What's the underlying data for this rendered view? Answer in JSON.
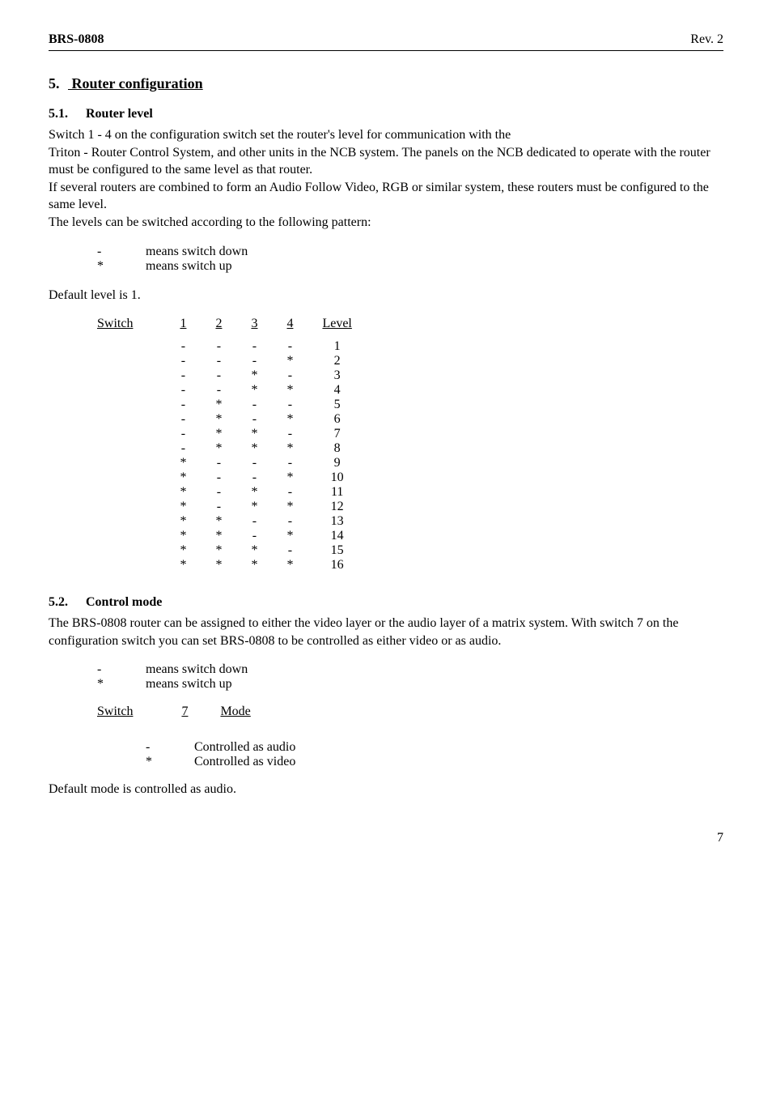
{
  "header": {
    "left": "BRS-0808",
    "right": "Rev. 2"
  },
  "section": {
    "num": "5.",
    "title": "Router configuration"
  },
  "sub1": {
    "num": "5.1.",
    "title": "Router level",
    "p1": "Switch 1 - 4 on the configuration switch set the router's level for communication with the",
    "p2": "Triton - Router Control System, and other units in the NCB system. The panels on the NCB dedicated to operate with the router must be configured to the same level as that router.",
    "p3": "If several routers are combined to form an Audio Follow Video, RGB or similar system, these routers must be configured to the same level.",
    "p4": "The levels can be switched according to the following pattern:",
    "legend": {
      "down_sym": "-",
      "down_txt": "means switch down",
      "up_sym": "*",
      "up_txt": "means switch up"
    },
    "p5": "Default level is 1."
  },
  "level_table": {
    "headers": [
      "Switch",
      "1",
      "2",
      "3",
      "4",
      "Level"
    ],
    "rows": [
      [
        "-",
        "-",
        "-",
        "-",
        "1"
      ],
      [
        "-",
        "-",
        "-",
        "*",
        "2"
      ],
      [
        "-",
        "-",
        "*",
        "-",
        "3"
      ],
      [
        "-",
        "-",
        "*",
        "*",
        "4"
      ],
      [
        "-",
        "*",
        "-",
        "-",
        "5"
      ],
      [
        "-",
        "*",
        "-",
        "*",
        "6"
      ],
      [
        "-",
        "*",
        "*",
        "-",
        "7"
      ],
      [
        "-",
        "*",
        "*",
        "*",
        "8"
      ],
      [
        "*",
        "-",
        "-",
        "-",
        "9"
      ],
      [
        "*",
        "-",
        "-",
        "*",
        "10"
      ],
      [
        "*",
        "-",
        "*",
        "-",
        "11"
      ],
      [
        "*",
        "-",
        "*",
        "*",
        "12"
      ],
      [
        "*",
        "*",
        "-",
        "-",
        "13"
      ],
      [
        "*",
        "*",
        "-",
        "*",
        "14"
      ],
      [
        "*",
        "*",
        "*",
        "-",
        "15"
      ],
      [
        "*",
        "*",
        "*",
        "*",
        "16"
      ]
    ]
  },
  "sub2": {
    "num": "5.2.",
    "title": "Control mode",
    "p1": "The BRS-0808 router can be assigned to either the video layer or the audio layer of a matrix system. With switch 7 on the configuration switch you can set BRS-0808 to be controlled as either video or as audio.",
    "legend": {
      "down_sym": "-",
      "down_txt": "means switch down",
      "up_sym": "*",
      "up_txt": "means switch up"
    }
  },
  "mode_table": {
    "headers": [
      "Switch",
      "7",
      "Mode"
    ],
    "rows": [
      [
        "-",
        "Controlled as audio"
      ],
      [
        "*",
        "Controlled as video"
      ]
    ]
  },
  "footer": {
    "p1": "Default mode is controlled as audio.",
    "page": "7"
  }
}
